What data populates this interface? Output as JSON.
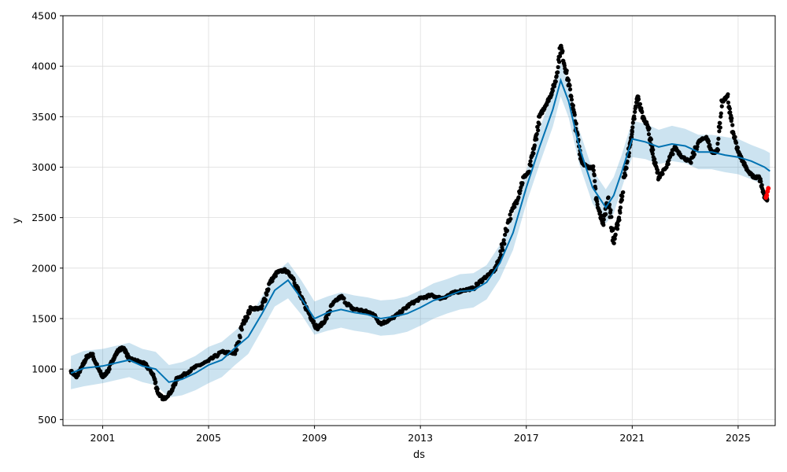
{
  "chart_data": {
    "type": "line",
    "title": "",
    "xlabel": "ds",
    "ylabel": "y",
    "xlim": [
      1999.5,
      2026.4
    ],
    "ylim": [
      440,
      4500
    ],
    "grid": true,
    "x_ticks": [
      {
        "value": 2001,
        "label": "2001"
      },
      {
        "value": 2005,
        "label": "2005"
      },
      {
        "value": 2009,
        "label": "2009"
      },
      {
        "value": 2013,
        "label": "2013"
      },
      {
        "value": 2017,
        "label": "2017"
      },
      {
        "value": 2021,
        "label": "2021"
      },
      {
        "value": 2025,
        "label": "2025"
      }
    ],
    "y_ticks": [
      {
        "value": 500,
        "label": "500"
      },
      {
        "value": 1000,
        "label": "1000"
      },
      {
        "value": 1500,
        "label": "1500"
      },
      {
        "value": 2000,
        "label": "2000"
      },
      {
        "value": 2500,
        "label": "2500"
      },
      {
        "value": 3000,
        "label": "3000"
      },
      {
        "value": 3500,
        "label": "3500"
      },
      {
        "value": 4000,
        "label": "4000"
      },
      {
        "value": 4500,
        "label": "4500"
      }
    ],
    "colors": {
      "observed": "#000000",
      "forecast_line": "#0072b2",
      "uncertainty_band": "#0072b2",
      "recent_points": "#ff0000",
      "grid": "#dddddd"
    },
    "observed": {
      "x": [
        1999.8,
        2000.0,
        2000.2,
        2000.4,
        2000.6,
        2000.8,
        2001.0,
        2001.2,
        2001.4,
        2001.6,
        2001.8,
        2002.0,
        2002.3,
        2002.6,
        2002.9,
        2003.1,
        2003.3,
        2003.6,
        2003.8,
        2004.1,
        2004.5,
        2005.0,
        2005.5,
        2006.0,
        2006.3,
        2006.6,
        2007.0,
        2007.3,
        2007.6,
        2007.9,
        2008.2,
        2008.5,
        2008.8,
        2009.1,
        2009.4,
        2009.7,
        2010.0,
        2010.4,
        2010.8,
        2011.2,
        2011.5,
        2011.8,
        2012.2,
        2012.6,
        2013.0,
        2013.4,
        2013.8,
        2014.2,
        2014.6,
        2015.0,
        2015.4,
        2015.8,
        2016.0,
        2016.3,
        2016.6,
        2016.9,
        2017.1,
        2017.3,
        2017.5,
        2017.7,
        2017.9,
        2018.1,
        2018.3,
        2018.5,
        2018.7,
        2018.9,
        2019.1,
        2019.3,
        2019.5,
        2019.7,
        2019.9,
        2020.1,
        2020.3,
        2020.5,
        2020.7,
        2020.9,
        2021.0,
        2021.2,
        2021.4,
        2021.6,
        2021.8,
        2022.0,
        2022.3,
        2022.6,
        2022.9,
        2023.2,
        2023.5,
        2023.8,
        2024.0,
        2024.2,
        2024.4,
        2024.6,
        2024.8,
        2025.0,
        2025.2,
        2025.4,
        2025.6,
        2025.8,
        2026.0,
        2026.1
      ],
      "y": [
        980,
        920,
        1010,
        1120,
        1150,
        1020,
        920,
        980,
        1100,
        1190,
        1210,
        1100,
        1080,
        1050,
        950,
        760,
        700,
        780,
        900,
        950,
        1020,
        1080,
        1170,
        1150,
        1450,
        1600,
        1600,
        1850,
        1960,
        1980,
        1900,
        1700,
        1550,
        1400,
        1480,
        1650,
        1720,
        1600,
        1580,
        1550,
        1450,
        1480,
        1550,
        1640,
        1700,
        1730,
        1700,
        1750,
        1780,
        1800,
        1900,
        1980,
        2100,
        2450,
        2650,
        2900,
        2950,
        3200,
        3500,
        3600,
        3700,
        3850,
        4200,
        3950,
        3700,
        3350,
        3050,
        3000,
        3000,
        2600,
        2450,
        2700,
        2250,
        2500,
        2900,
        3200,
        3350,
        3700,
        3500,
        3400,
        3100,
        2900,
        3000,
        3200,
        3100,
        3050,
        3250,
        3300,
        3150,
        3150,
        3650,
        3700,
        3350,
        3150,
        3050,
        2950,
        2900,
        2900,
        2700,
        2680
      ]
    },
    "trend": {
      "x": [
        1999.8,
        2000.3,
        2001.0,
        2001.5,
        2002.0,
        2002.5,
        2003.0,
        2003.5,
        2004.0,
        2004.5,
        2005.0,
        2005.5,
        2006.0,
        2006.5,
        2007.0,
        2007.5,
        2008.0,
        2008.5,
        2009.0,
        2009.5,
        2010.0,
        2010.5,
        2011.0,
        2011.5,
        2012.0,
        2012.5,
        2013.0,
        2013.5,
        2014.0,
        2014.5,
        2015.0,
        2015.5,
        2016.0,
        2016.5,
        2017.0,
        2017.5,
        2018.0,
        2018.3,
        2018.6,
        2019.0,
        2019.5,
        2020.0,
        2020.3,
        2020.6,
        2021.0,
        2021.5,
        2022.0,
        2022.5,
        2023.0,
        2023.5,
        2024.0,
        2024.5,
        2025.0,
        2025.5,
        2026.0,
        2026.2
      ],
      "y": [
        960,
        1010,
        1030,
        1060,
        1090,
        1030,
        1000,
        870,
        900,
        960,
        1040,
        1090,
        1210,
        1320,
        1540,
        1780,
        1880,
        1700,
        1500,
        1560,
        1590,
        1560,
        1540,
        1500,
        1520,
        1550,
        1610,
        1680,
        1720,
        1770,
        1780,
        1860,
        2050,
        2350,
        2800,
        3200,
        3570,
        3860,
        3650,
        3200,
        2800,
        2600,
        2720,
        2950,
        3280,
        3250,
        3200,
        3230,
        3210,
        3150,
        3150,
        3120,
        3100,
        3060,
        3000,
        2960
      ]
    },
    "uncertainty_lower": [
      800,
      830,
      860,
      890,
      920,
      870,
      840,
      720,
      740,
      790,
      860,
      920,
      1040,
      1150,
      1380,
      1620,
      1700,
      1540,
      1340,
      1380,
      1410,
      1380,
      1360,
      1330,
      1340,
      1370,
      1430,
      1500,
      1550,
      1590,
      1610,
      1690,
      1890,
      2180,
      2640,
      3030,
      3400,
      3700,
      3490,
      3030,
      2640,
      2440,
      2540,
      2790,
      3100,
      3080,
      3030,
      3060,
      3040,
      2980,
      2980,
      2950,
      2930,
      2880,
      2820,
      2790
    ],
    "uncertainty_upper": [
      1130,
      1180,
      1200,
      1230,
      1260,
      1200,
      1170,
      1040,
      1070,
      1130,
      1220,
      1270,
      1380,
      1490,
      1710,
      1950,
      2060,
      1880,
      1670,
      1720,
      1760,
      1730,
      1710,
      1680,
      1690,
      1720,
      1780,
      1850,
      1890,
      1940,
      1950,
      2030,
      2230,
      2520,
      2970,
      3380,
      3740,
      4040,
      3820,
      3370,
      2970,
      2780,
      2900,
      3120,
      3460,
      3430,
      3370,
      3410,
      3380,
      3320,
      3320,
      3300,
      3280,
      3220,
      3170,
      3140
    ],
    "recent": {
      "x": [
        2026.05,
        2026.08,
        2026.11,
        2026.14
      ],
      "y": [
        2700,
        2720,
        2760,
        2790
      ]
    }
  }
}
